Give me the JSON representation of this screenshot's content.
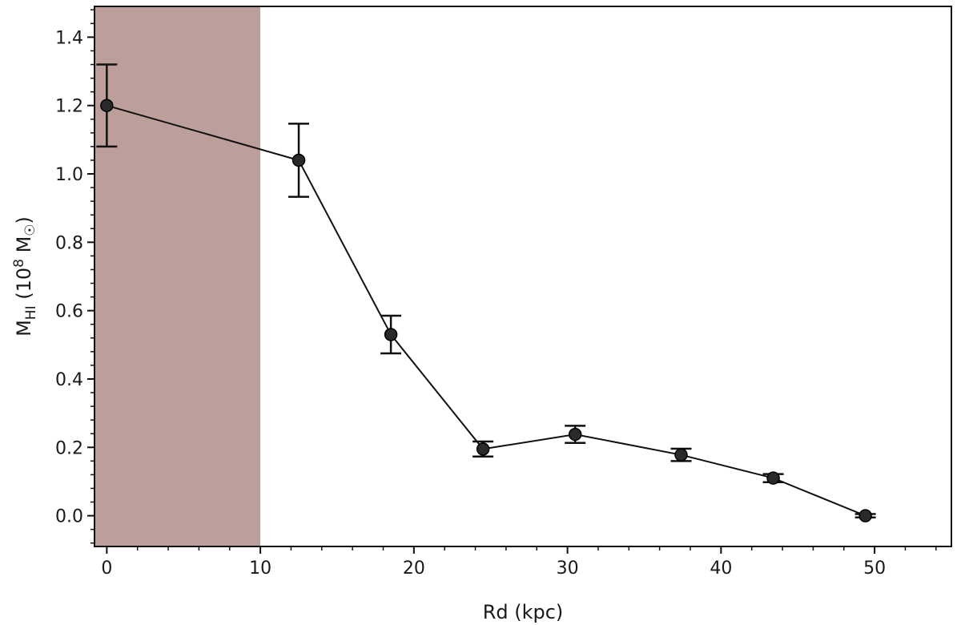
{
  "chart_data": {
    "type": "line",
    "xlabel": "Rd (kpc)",
    "ylabel": {
      "base": "M",
      "sub": "HI",
      "open": " (10",
      "exp": "8",
      "unit": " M",
      "sun": "☉",
      "close": ")"
    },
    "xlim": [
      -0.8,
      55
    ],
    "ylim": [
      -0.09,
      1.49
    ],
    "xticks": [
      0,
      10,
      20,
      30,
      40,
      50
    ],
    "xtick_labels": [
      "0",
      "10",
      "20",
      "30",
      "40",
      "50"
    ],
    "yticks": [
      0.0,
      0.2,
      0.4,
      0.6,
      0.8,
      1.0,
      1.2,
      1.4
    ],
    "ytick_labels": [
      "0.0",
      "0.2",
      "0.4",
      "0.6",
      "0.8",
      "1.0",
      "1.2",
      "1.4"
    ],
    "x_minor_step": 2,
    "y_minor_step": 0.04,
    "grid": false,
    "shaded_region": {
      "x": [
        -0.8,
        10
      ],
      "color": "#bc9f9b"
    },
    "series": [
      {
        "color": "#111111",
        "x": [
          0,
          12.5,
          18.5,
          24.5,
          30.5,
          37.4,
          43.4,
          49.4
        ],
        "y": [
          1.2,
          1.04,
          0.53,
          0.195,
          0.238,
          0.178,
          0.11,
          0.0
        ],
        "yerr": [
          0.12,
          0.107,
          0.055,
          0.022,
          0.025,
          0.018,
          0.012,
          0.005
        ]
      }
    ]
  }
}
